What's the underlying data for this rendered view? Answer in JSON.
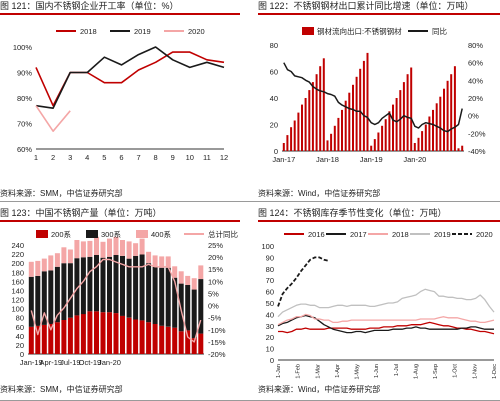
{
  "panels": [
    {
      "title": "图 121：国内不锈钢企业开工率（单位：%）",
      "source": "资料来源：SMM，中信证券研究部"
    },
    {
      "title": "图 122：不锈钢钢材出口累计同比增速（单位：万吨）",
      "source": "资料来源：Wind，中信证券研究部"
    },
    {
      "title": "图 123：中国不锈钢产量（单位：万吨）",
      "source": "资料来源：SMM，中信证券研究部"
    },
    {
      "title": "图 124：不锈钢库存季节性变化（单位：万吨）",
      "source": "资料来源：Wind，中信证券研究部"
    }
  ],
  "colors": {
    "accent": "#c00000",
    "dark": "#1a1a1a",
    "pink": "#f4a6a6",
    "gray": "#c0c0c0"
  },
  "chart_data": [
    {
      "type": "line",
      "categories": [
        "1",
        "2",
        "3",
        "4",
        "5",
        "6",
        "7",
        "8",
        "9",
        "10",
        "11",
        "12"
      ],
      "ylim": [
        60,
        100
      ],
      "yticks": [
        "60%",
        "70%",
        "80%",
        "90%",
        "100%"
      ],
      "legend_position": "top",
      "series": [
        {
          "name": "2018",
          "color": "#c00000",
          "values": [
            92,
            77,
            90,
            90,
            86,
            86,
            91,
            94,
            98,
            98,
            95,
            94
          ]
        },
        {
          "name": "2019",
          "color": "#1a1a1a",
          "values": [
            77,
            76,
            90,
            90,
            96,
            93,
            97,
            100,
            95,
            92,
            94,
            92
          ]
        },
        {
          "name": "2020",
          "color": "#f4a6a6",
          "values": [
            77,
            67,
            75,
            null,
            null,
            null,
            null,
            null,
            null,
            null,
            null,
            null
          ]
        }
      ]
    },
    {
      "type": "bar+line",
      "x_ticks": [
        "Jan-17",
        "Jan-18",
        "Jan-19",
        "Jan-20"
      ],
      "legend_position": "top",
      "left_axis": {
        "ylim": [
          0,
          80
        ],
        "ticks": [
          "0",
          "20",
          "40",
          "60",
          "80"
        ]
      },
      "right_axis": {
        "ylim": [
          -40,
          80
        ],
        "ticks": [
          "-40%",
          "-20%",
          "0%",
          "20%",
          "40%",
          "60%",
          "80%"
        ]
      },
      "bars": {
        "name": "钢材流向出口:不锈钢钢材",
        "color": "#c00000",
        "values": [
          6,
          12,
          18,
          23,
          29,
          35,
          40,
          46,
          52,
          58,
          64,
          70,
          8,
          13,
          19,
          25,
          31,
          38,
          44,
          50,
          56,
          62,
          68,
          74,
          4,
          9,
          14,
          19,
          24,
          30,
          35,
          40,
          46,
          52,
          58,
          63,
          6,
          10,
          15,
          20,
          26,
          31,
          36,
          41,
          47,
          53,
          58,
          64,
          2,
          4
        ]
      },
      "line": {
        "name": "同比",
        "color": "#1a1a1a",
        "values": [
          60,
          52,
          50,
          45,
          44,
          43,
          40,
          38,
          33,
          30,
          28,
          27,
          25,
          24,
          22,
          15,
          12,
          10,
          8,
          7,
          5,
          5,
          0,
          -2,
          -8,
          -10,
          -8,
          -3,
          0,
          3,
          -5,
          -7,
          -4,
          0,
          -2,
          -3,
          -12,
          -14,
          -10,
          -8,
          -9,
          -10,
          -12,
          -14,
          -17,
          -18,
          -15,
          -13,
          -10,
          8
        ]
      }
    },
    {
      "type": "stacked-bar+line",
      "x_ticks": [
        "Jan-19",
        "Apr-19",
        "Jul-19",
        "Oct-19",
        "Jan-20"
      ],
      "legend_position": "top",
      "left_axis": {
        "ylim": [
          0,
          240
        ],
        "ticks": [
          "0",
          "20",
          "40",
          "60",
          "80",
          "100",
          "120",
          "140",
          "160",
          "180",
          "200",
          "220",
          "240"
        ]
      },
      "right_axis": {
        "ylim": [
          -20,
          25
        ],
        "ticks": [
          "-20%",
          "-15%",
          "-10%",
          "-5%",
          "0%",
          "5%",
          "10%",
          "15%",
          "20%",
          "25%"
        ]
      },
      "series": [
        {
          "name": "200系",
          "color": "#c00000",
          "values": [
            60,
            62,
            64,
            66,
            70,
            75,
            80,
            85,
            88,
            94,
            94,
            92,
            92,
            90,
            84,
            80,
            76,
            74,
            70,
            66,
            62,
            60,
            58,
            50,
            52,
            35,
            45
          ]
        },
        {
          "name": "300系",
          "color": "#1a1a1a",
          "values": [
            110,
            110,
            118,
            118,
            122,
            125,
            120,
            126,
            125,
            120,
            124,
            120,
            122,
            128,
            132,
            130,
            140,
            145,
            130,
            126,
            128,
            130,
            110,
            105,
            100,
            107,
            120
          ]
        },
        {
          "name": "400系",
          "color": "#f4a6a6",
          "values": [
            33,
            33,
            28,
            33,
            30,
            35,
            30,
            40,
            35,
            35,
            40,
            35,
            40,
            40,
            35,
            38,
            28,
            35,
            25,
            25,
            25,
            25,
            25,
            27,
            20,
            25,
            30
          ]
        }
      ],
      "line": {
        "name": "总计同比",
        "color": "#f4a6a6",
        "values": [
          -2,
          -12,
          -3,
          -10,
          -4,
          -1,
          3,
          7,
          10,
          14,
          16,
          19,
          19,
          18,
          17,
          16,
          16,
          16,
          17,
          16,
          16,
          16,
          10,
          -2,
          -13,
          -15,
          -6
        ]
      }
    },
    {
      "type": "line",
      "x_ticks": [
        "1-Jan",
        "1-Feb",
        "1-Mar",
        "1-Apr",
        "1-May",
        "1-Jun",
        "1-Jul",
        "1-Aug",
        "1-Sep",
        "1-Oct",
        "1-Nov",
        "1-Dec"
      ],
      "ylim": [
        0,
        100
      ],
      "yticks": [
        "0",
        "10",
        "20",
        "30",
        "40",
        "50",
        "60",
        "70",
        "80",
        "90",
        "100"
      ],
      "legend_position": "top",
      "series": [
        {
          "name": "2016",
          "color": "#c00000",
          "dash": "solid",
          "values": [
            25,
            25,
            24,
            25,
            27,
            27,
            28,
            27,
            27,
            27,
            27,
            28,
            28,
            28,
            28,
            28,
            27,
            27,
            27,
            27,
            28,
            28,
            28,
            29,
            29,
            29,
            30,
            30,
            30,
            31,
            31,
            31,
            32,
            33,
            32,
            31,
            30,
            30,
            29,
            28,
            28,
            27,
            27,
            26,
            25,
            25,
            24,
            23
          ]
        },
        {
          "name": "2017",
          "color": "#1a1a1a",
          "dash": "solid",
          "values": [
            30,
            32,
            33,
            35,
            37,
            38,
            39,
            38,
            37,
            34,
            31,
            29,
            27,
            26,
            25,
            24,
            24,
            25,
            25,
            24,
            25,
            26,
            26,
            26,
            26,
            27,
            27,
            27,
            28,
            28,
            29,
            28,
            28,
            27,
            27,
            27,
            27,
            27,
            27,
            27,
            28,
            28,
            29,
            29,
            28,
            27,
            27,
            27
          ]
        },
        {
          "name": "2018",
          "color": "#f4a6a6",
          "dash": "solid",
          "values": [
            31,
            33,
            35,
            36,
            38,
            38,
            40,
            39,
            36,
            36,
            35,
            35,
            33,
            33,
            34,
            34,
            35,
            35,
            35,
            35,
            35,
            35,
            35,
            35,
            35,
            35,
            35,
            35,
            35,
            35,
            35,
            36,
            36,
            36,
            36,
            37,
            38,
            37,
            37,
            37,
            36,
            35,
            34,
            34,
            33,
            33,
            34,
            35
          ]
        },
        {
          "name": "2019",
          "color": "#c0c0c0",
          "dash": "solid",
          "values": [
            38,
            42,
            44,
            46,
            48,
            49,
            49,
            48,
            48,
            46,
            46,
            46,
            47,
            48,
            48,
            47,
            48,
            48,
            48,
            48,
            47,
            47,
            48,
            49,
            50,
            50,
            51,
            54,
            55,
            56,
            57,
            60,
            62,
            61,
            60,
            56,
            56,
            55,
            55,
            54,
            54,
            53,
            53,
            54,
            57,
            53,
            47,
            42
          ]
        },
        {
          "name": "2020",
          "color": "#1a1a1a",
          "dash": "dashed",
          "values": [
            47,
            58,
            63,
            67,
            72,
            78,
            83,
            88,
            90,
            90,
            88,
            87,
            null,
            null,
            null,
            null,
            null,
            null,
            null,
            null,
            null,
            null,
            null,
            null,
            null,
            null,
            null,
            null,
            null,
            null,
            null,
            null,
            null,
            null,
            null,
            null,
            null,
            null,
            null,
            null,
            null,
            null,
            null,
            null,
            null,
            null,
            null,
            null
          ]
        }
      ]
    }
  ]
}
